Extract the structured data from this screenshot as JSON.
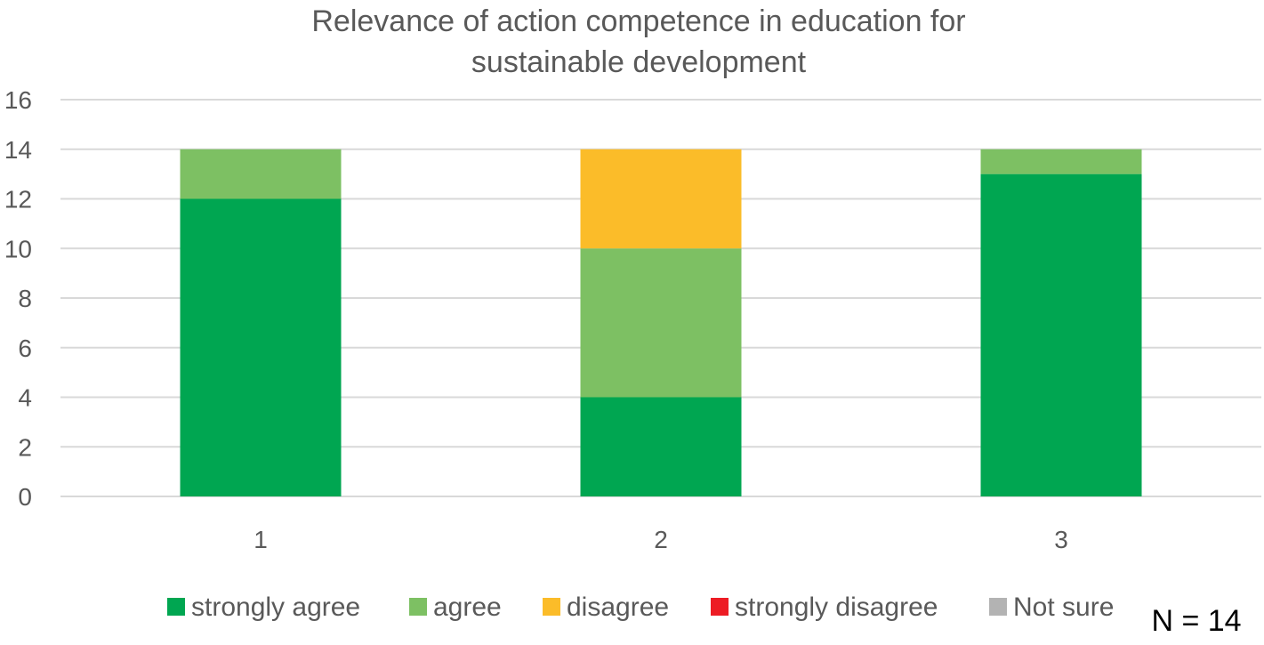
{
  "chart_data": {
    "type": "bar",
    "stacked": true,
    "title_lines": [
      "Relevance of action competence in education for",
      "sustainable development"
    ],
    "categories": [
      "1",
      "2",
      "3"
    ],
    "series": [
      {
        "name": "strongly agree",
        "color": "#00a651",
        "values": [
          12,
          4,
          13
        ]
      },
      {
        "name": "agree",
        "color": "#7dc063",
        "values": [
          2,
          6,
          1
        ]
      },
      {
        "name": "disagree",
        "color": "#fbbc29",
        "values": [
          0,
          4,
          0
        ]
      },
      {
        "name": "strongly disagree",
        "color": "#ed1c24",
        "values": [
          0,
          0,
          0
        ]
      },
      {
        "name": "Not sure",
        "color": "#b3b3b3",
        "values": [
          0,
          0,
          0
        ]
      }
    ],
    "ylim": [
      0,
      16
    ],
    "yticks": [
      "0",
      "2",
      "4",
      "6",
      "8",
      "10",
      "12",
      "14",
      "16"
    ],
    "grid": true,
    "legend_position": "bottom",
    "annotation": "N = 14"
  }
}
